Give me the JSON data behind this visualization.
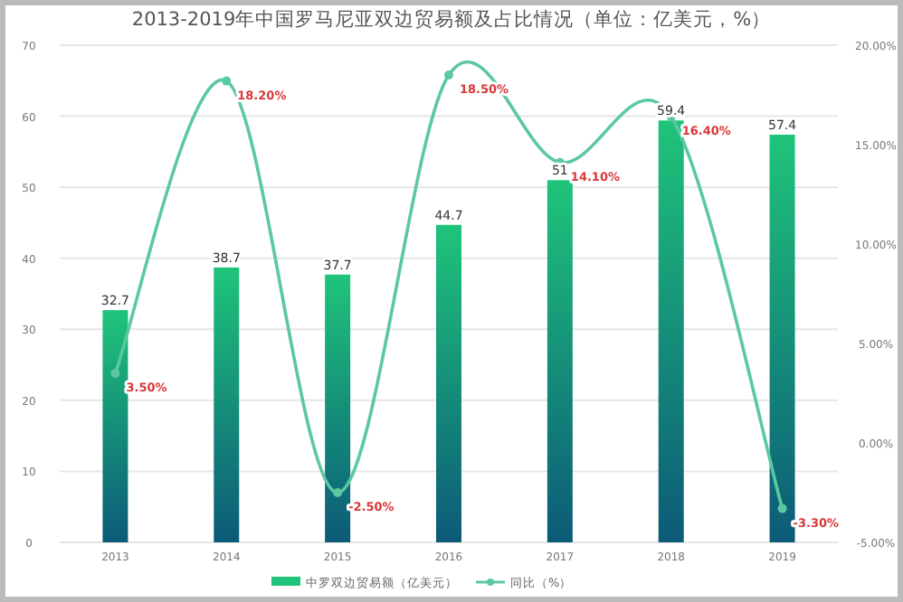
{
  "chart_data": {
    "type": "bar",
    "title": "2013-2019年中国罗马尼亚双边贸易额及占比情况（单位：亿美元，%）",
    "categories": [
      "2013",
      "2014",
      "2015",
      "2016",
      "2017",
      "2018",
      "2019"
    ],
    "series": [
      {
        "name": "中罗双边贸易额（亿美元）",
        "color": "#1fc47a",
        "values": [
          32.7,
          38.7,
          37.7,
          44.7,
          51,
          59.4,
          57.4
        ]
      },
      {
        "name": "同比（%）",
        "type": "line",
        "axis": "y2",
        "color": "#5cc8a0",
        "marker": "circle",
        "values": [
          3.5,
          18.2,
          -2.5,
          18.5,
          14.1,
          16.4,
          -3.3
        ],
        "value_labels": [
          "3.50%",
          "18.20%",
          "-2.50%",
          "18.50%",
          "14.10%",
          "16.40%",
          "-3.30%"
        ]
      }
    ],
    "data_labels": true,
    "ylim": [
      0,
      70
    ],
    "yticks": [
      0,
      10,
      20,
      30,
      40,
      50,
      60,
      70
    ],
    "y2lim": [
      -5,
      20
    ],
    "y2ticks": [
      {
        "value": -5,
        "label": "-5.00%"
      },
      {
        "value": 0,
        "label": "0.00%"
      },
      {
        "value": 5,
        "label": "5.00%"
      },
      {
        "value": 10,
        "label": "10.00%"
      },
      {
        "value": 15,
        "label": "15.00%"
      },
      {
        "value": 20,
        "label": "20.00%"
      }
    ],
    "grid": "y",
    "legend": "bottom"
  }
}
